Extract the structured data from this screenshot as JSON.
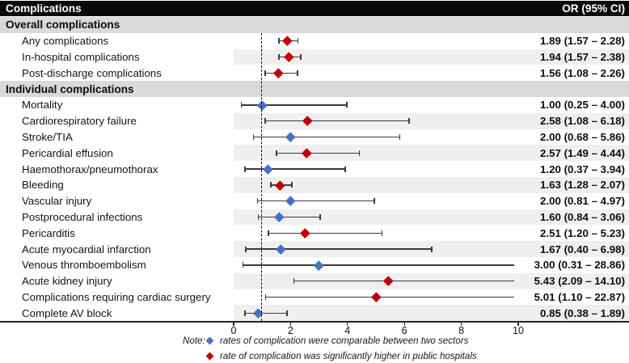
{
  "header": {
    "title": "Complications",
    "or_label": "OR (95% CI)"
  },
  "colors": {
    "red": "#c00000",
    "blue": "#4472c4",
    "band": "#efefef",
    "section_bg": "#d9d9d9",
    "title_bar_bg": "#0a0a0a",
    "error_bar": "#3a3a3a"
  },
  "note": {
    "prefix": "Note:",
    "blue_text": "rates of complication were comparable between two sectors",
    "red_text": "rate of complication was significantly higher in public hospitals"
  },
  "chart_data": {
    "type": "scatter",
    "subtype": "forest-plot",
    "title": "Complications",
    "value_column_header": "OR (95% CI)",
    "xlim": [
      0,
      10.2
    ],
    "x_ticks": [
      0,
      2,
      4,
      6,
      8,
      10
    ],
    "reference_line_x": 1,
    "grid": false,
    "legend_position": "bottom",
    "sections": [
      {
        "title": "Overall complications",
        "rows": [
          {
            "label": "Any complications",
            "or": 1.89,
            "ci_low": 1.57,
            "ci_high": 2.28,
            "marker": "red",
            "display": "1.89 (1.57 – 2.28)"
          },
          {
            "label": "In-hospital complications",
            "or": 1.94,
            "ci_low": 1.57,
            "ci_high": 2.38,
            "marker": "red",
            "display": "1.94 (1.57 – 2.38)"
          },
          {
            "label": "Post-discharge complications",
            "or": 1.56,
            "ci_low": 1.08,
            "ci_high": 2.26,
            "marker": "red",
            "display": "1.56 (1.08 – 2.26)"
          }
        ]
      },
      {
        "title": "Individual complications",
        "rows": [
          {
            "label": "Mortality",
            "or": 1.0,
            "ci_low": 0.25,
            "ci_high": 4.0,
            "marker": "blue",
            "display": "1.00 (0.25 – 4.00)"
          },
          {
            "label": "Cardiorespiratory failure",
            "or": 2.58,
            "ci_low": 1.08,
            "ci_high": 6.18,
            "marker": "red",
            "display": "2.58 (1.08 – 6.18)"
          },
          {
            "label": "Stroke/TIA",
            "or": 2.0,
            "ci_low": 0.68,
            "ci_high": 5.86,
            "marker": "blue",
            "display": "2.00 (0.68 – 5.86)"
          },
          {
            "label": "Pericardial effusion",
            "or": 2.57,
            "ci_low": 1.49,
            "ci_high": 4.44,
            "marker": "red",
            "display": "2.57 (1.49 – 4.44)"
          },
          {
            "label": "Haemothorax/pneumothorax",
            "or": 1.2,
            "ci_low": 0.37,
            "ci_high": 3.94,
            "marker": "blue",
            "display": "1.20 (0.37 – 3.94)"
          },
          {
            "label": "Bleeding",
            "or": 1.63,
            "ci_low": 1.28,
            "ci_high": 2.07,
            "marker": "red",
            "display": "1.63 (1.28 – 2.07)"
          },
          {
            "label": "Vascular injury",
            "or": 2.0,
            "ci_low": 0.81,
            "ci_high": 4.97,
            "marker": "blue",
            "display": "2.00 (0.81 – 4.97)"
          },
          {
            "label": "Postprocedural infections",
            "or": 1.6,
            "ci_low": 0.84,
            "ci_high": 3.06,
            "marker": "blue",
            "display": "1.60 (0.84 – 3.06)"
          },
          {
            "label": "Pericarditis",
            "or": 2.51,
            "ci_low": 1.2,
            "ci_high": 5.23,
            "marker": "red",
            "display": "2.51 (1.20 – 5.23)"
          },
          {
            "label": "Acute myocardial infarction",
            "or": 1.67,
            "ci_low": 0.4,
            "ci_high": 6.98,
            "marker": "blue",
            "display": "1.67 (0.40 – 6.98)"
          },
          {
            "label": "Venous thromboembolism",
            "or": 3.0,
            "ci_low": 0.31,
            "ci_high": 28.86,
            "marker": "blue",
            "display": "3.00 (0.31 – 28.86)"
          },
          {
            "label": "Acute kidney injury",
            "or": 5.43,
            "ci_low": 2.09,
            "ci_high": 14.1,
            "marker": "red",
            "display": "5.43 (2.09 – 14.10)"
          },
          {
            "label": "Complications requiring cardiac surgery",
            "or": 5.01,
            "ci_low": 1.1,
            "ci_high": 22.87,
            "marker": "red",
            "display": "5.01 (1.10 – 22.87)"
          },
          {
            "label": "Complete AV block",
            "or": 0.85,
            "ci_low": 0.38,
            "ci_high": 1.89,
            "marker": "blue",
            "display": "0.85 (0.38 – 1.89)"
          }
        ]
      }
    ],
    "legend": [
      {
        "marker": "blue",
        "text": "rates of complication were comparable between two sectors"
      },
      {
        "marker": "red",
        "text": "rate of complication was significantly higher in public hospitals"
      }
    ]
  }
}
